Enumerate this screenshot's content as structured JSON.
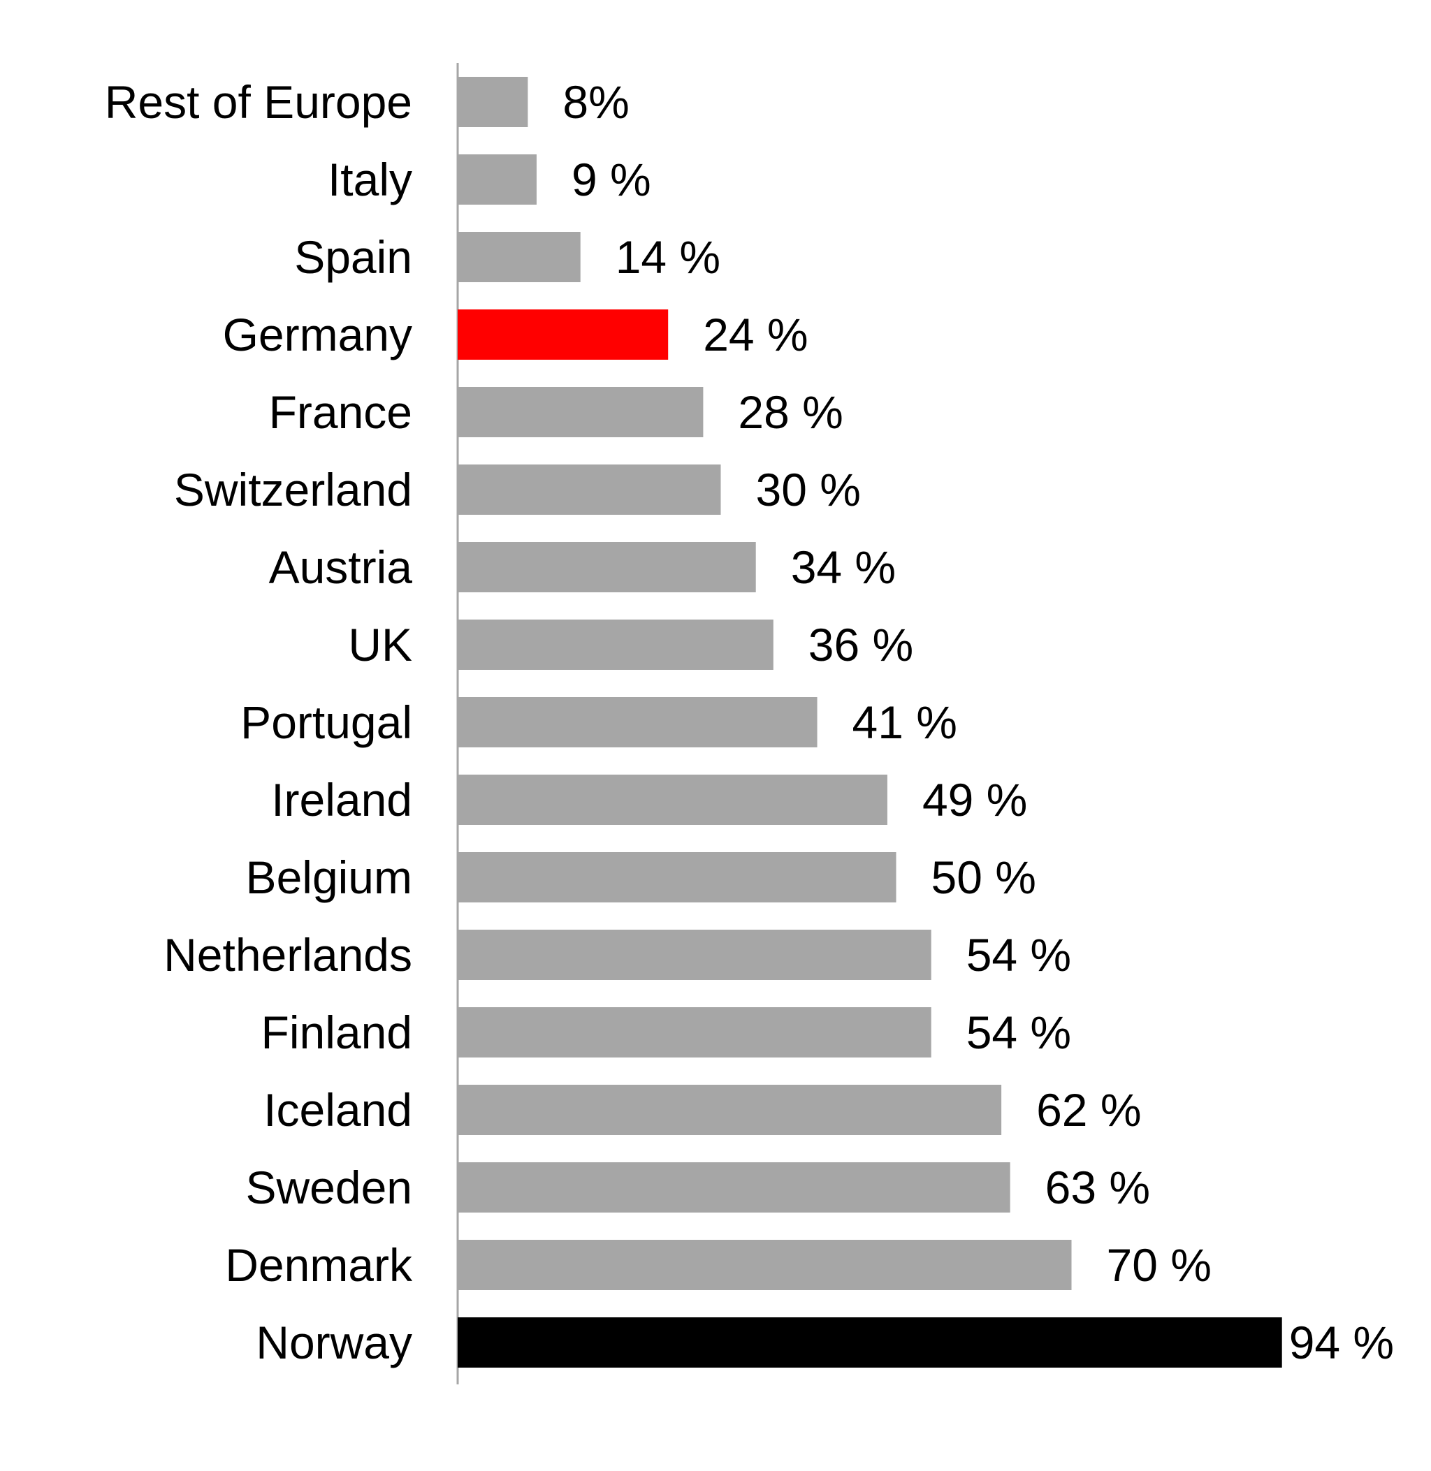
{
  "chart_data": {
    "type": "bar",
    "orientation": "horizontal",
    "categories": [
      "Rest of Europe",
      "Italy",
      "Spain",
      "Germany",
      "France",
      "Switzerland",
      "Austria",
      "UK",
      "Portugal",
      "Ireland",
      "Belgium",
      "Netherlands",
      "Finland",
      "Iceland",
      "Sweden",
      "Denmark",
      "Norway"
    ],
    "values": [
      8,
      9,
      14,
      24,
      28,
      30,
      34,
      36,
      41,
      49,
      50,
      54,
      54,
      62,
      63,
      70,
      94
    ],
    "data_labels": [
      "8%",
      "9 %",
      "14 %",
      "24 %",
      "28 %",
      "30 %",
      "34 %",
      "36 %",
      "41 %",
      "49 %",
      "50 %",
      "54 %",
      "54 %",
      "62 %",
      "63 %",
      "70 %",
      "94 %"
    ],
    "colors": [
      "#a6a6a6",
      "#a6a6a6",
      "#a6a6a6",
      "#ff0000",
      "#a6a6a6",
      "#a6a6a6",
      "#a6a6a6",
      "#a6a6a6",
      "#a6a6a6",
      "#a6a6a6",
      "#a6a6a6",
      "#a6a6a6",
      "#a6a6a6",
      "#a6a6a6",
      "#a6a6a6",
      "#a6a6a6",
      "#000000"
    ],
    "title": "",
    "xlabel": "",
    "ylabel": "",
    "xlim": [
      0,
      100
    ],
    "grid": false,
    "legend": "none",
    "unit": "%"
  }
}
